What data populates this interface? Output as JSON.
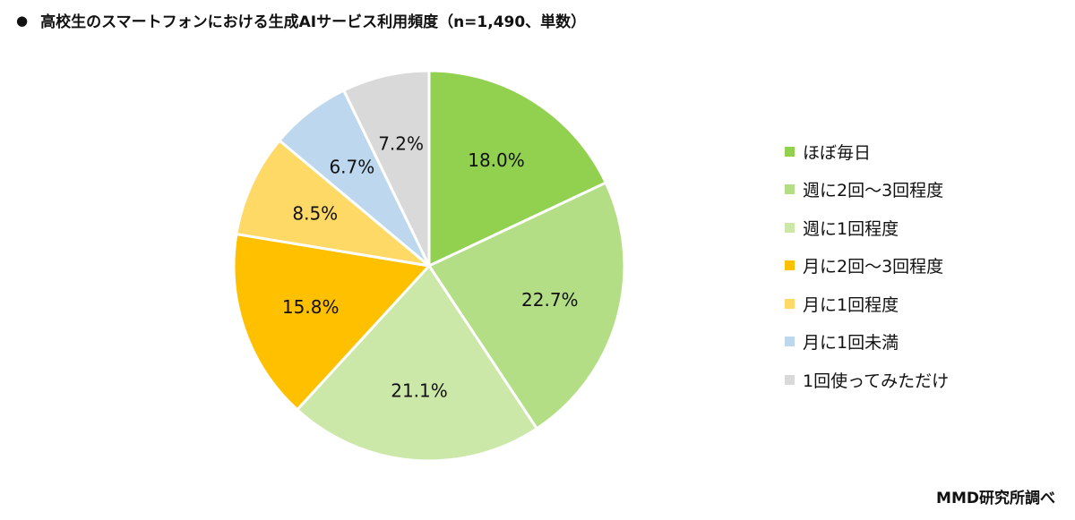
{
  "header": {
    "bullet": "●",
    "title": "高校生のスマートフォンにおける生成AIサービス利用頻度（n=1,490、単数）"
  },
  "source": "MMD研究所調べ",
  "chart_data": {
    "type": "pie",
    "title": "高校生のスマートフォンにおける生成AIサービス利用頻度（n=1,490、単数）",
    "legend_position": "right",
    "start_angle_deg": 0,
    "direction": "clockwise",
    "slices": [
      {
        "label": "ほぼ毎日",
        "value": 18.0,
        "display": "18.0%",
        "color": "#92D050"
      },
      {
        "label": "週に2回～3回程度",
        "value": 22.7,
        "display": "22.7%",
        "color": "#B4DE86"
      },
      {
        "label": "週に1回程度",
        "value": 21.1,
        "display": "21.1%",
        "color": "#CCE8A9"
      },
      {
        "label": "月に2回～3回程度",
        "value": 15.8,
        "display": "15.8%",
        "color": "#FFC000"
      },
      {
        "label": "月に1回程度",
        "value": 8.5,
        "display": "8.5%",
        "color": "#FFD966"
      },
      {
        "label": "月に1回未満",
        "value": 6.7,
        "display": "6.7%",
        "color": "#BDD7EE"
      },
      {
        "label": "1回使ってみただけ",
        "value": 7.2,
        "display": "7.2%",
        "color": "#D9D9D9"
      }
    ]
  }
}
